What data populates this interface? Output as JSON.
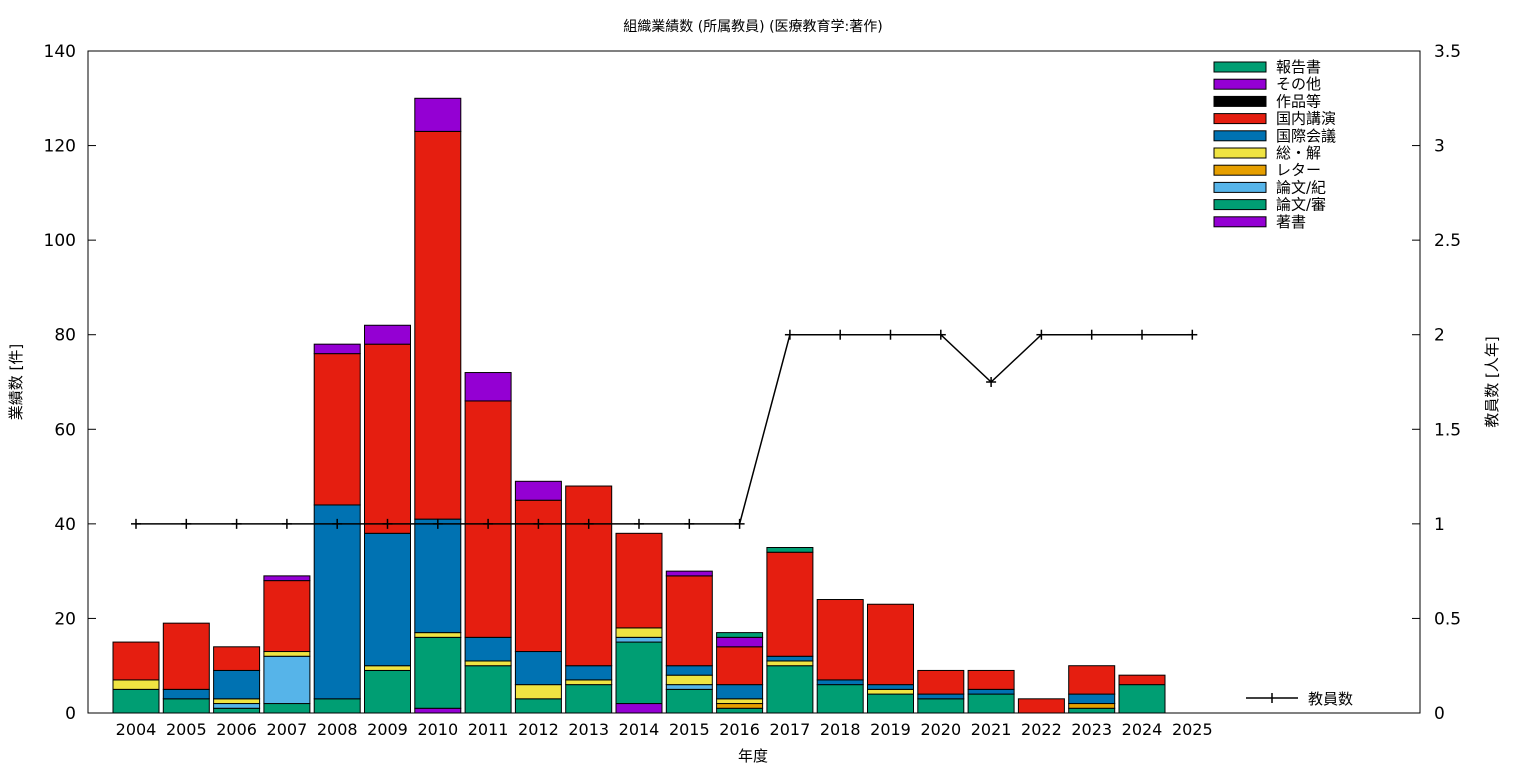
{
  "chart_data": {
    "type": "bar",
    "stacked": true,
    "title": "組織業績数 (所属教員) (医療教育学:著作)",
    "xlabel": "年度",
    "ylabel": "業績数 [件]",
    "y2label": "教員数 [人年]",
    "ylim": [
      0,
      140
    ],
    "y2lim": [
      0,
      3.5
    ],
    "yticks": [
      "0",
      "20",
      "40",
      "60",
      "80",
      "100",
      "120",
      "140"
    ],
    "y2ticks": [
      "0",
      "0.5",
      "1",
      "1.5",
      "2",
      "2.5",
      "3",
      "3.5"
    ],
    "grid": false,
    "legend_position": "top-right",
    "categories": [
      "2004",
      "2005",
      "2006",
      "2007",
      "2008",
      "2009",
      "2010",
      "2011",
      "2012",
      "2013",
      "2014",
      "2015",
      "2016",
      "2017",
      "2018",
      "2019",
      "2020",
      "2021",
      "2022",
      "2023",
      "2024",
      "2025"
    ],
    "series": [
      {
        "name": "著書",
        "color": "#9400d3",
        "values": [
          0,
          0,
          0,
          0,
          0,
          0,
          1,
          0,
          0,
          0,
          2,
          0,
          0,
          0,
          0,
          0,
          0,
          0,
          0,
          0,
          0,
          0
        ]
      },
      {
        "name": "論文/審",
        "color": "#009e73",
        "values": [
          5,
          3,
          1,
          2,
          3,
          9,
          15,
          10,
          3,
          6,
          13,
          5,
          1,
          10,
          6,
          4,
          3,
          4,
          0,
          1,
          6,
          0
        ]
      },
      {
        "name": "論文/紀",
        "color": "#56b4e9",
        "values": [
          0,
          0,
          1,
          10,
          0,
          0,
          0,
          0,
          0,
          0,
          1,
          1,
          0,
          0,
          0,
          0,
          0,
          0,
          0,
          0,
          0,
          0
        ]
      },
      {
        "name": "レター",
        "color": "#e69f00",
        "values": [
          0,
          0,
          0,
          0,
          0,
          0,
          0,
          0,
          0,
          0,
          0,
          0,
          1,
          0,
          0,
          0,
          0,
          0,
          0,
          1,
          0,
          0
        ]
      },
      {
        "name": "総・解",
        "color": "#f0e442",
        "values": [
          2,
          0,
          1,
          1,
          0,
          1,
          1,
          1,
          3,
          1,
          2,
          2,
          1,
          1,
          0,
          1,
          0,
          0,
          0,
          0,
          0,
          0
        ]
      },
      {
        "name": "国際会議",
        "color": "#0072b2",
        "values": [
          0,
          2,
          6,
          0,
          41,
          28,
          24,
          5,
          7,
          3,
          0,
          2,
          3,
          1,
          1,
          1,
          1,
          1,
          0,
          2,
          0,
          0
        ]
      },
      {
        "name": "国内講演",
        "color": "#e51e10",
        "values": [
          8,
          14,
          5,
          15,
          32,
          40,
          82,
          50,
          32,
          38,
          20,
          19,
          8,
          22,
          17,
          17,
          5,
          4,
          3,
          6,
          2,
          0
        ]
      },
      {
        "name": "作品等",
        "color": "#000000",
        "values": [
          0,
          0,
          0,
          0,
          0,
          0,
          0,
          0,
          0,
          0,
          0,
          0,
          0,
          0,
          0,
          0,
          0,
          0,
          0,
          0,
          0,
          0
        ]
      },
      {
        "name": "その他",
        "color": "#9400d3",
        "values": [
          0,
          0,
          0,
          1,
          2,
          4,
          7,
          6,
          4,
          0,
          0,
          1,
          2,
          0,
          0,
          0,
          0,
          0,
          0,
          0,
          0,
          0
        ]
      },
      {
        "name": "報告書",
        "color": "#009e73",
        "values": [
          0,
          0,
          0,
          0,
          0,
          0,
          0,
          0,
          0,
          0,
          0,
          0,
          1,
          1,
          0,
          0,
          0,
          0,
          0,
          0,
          0,
          0
        ]
      }
    ],
    "legend_order": [
      "報告書",
      "その他",
      "作品等",
      "国内講演",
      "国際会議",
      "総・解",
      "レター",
      "論文/紀",
      "論文/審",
      "著書"
    ],
    "line": {
      "name": "教員数",
      "axis": "y2",
      "color": "#000000",
      "values": [
        1,
        1,
        1,
        1,
        1,
        1,
        1,
        1,
        1,
        1,
        1,
        1,
        1,
        2,
        2,
        2,
        2,
        1.75,
        2,
        2,
        2,
        2
      ]
    }
  }
}
